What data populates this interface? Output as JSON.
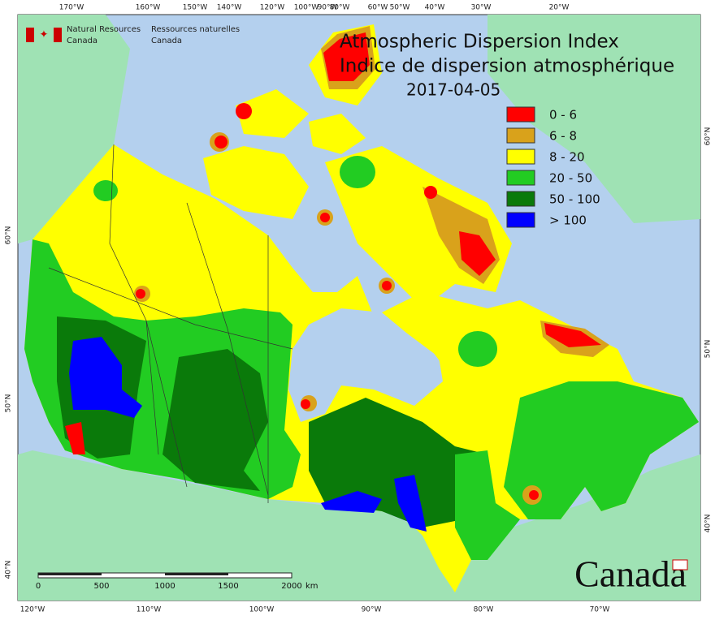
{
  "header": {
    "agency_en": [
      "Natural Resources",
      "Canada"
    ],
    "agency_fr": [
      "Ressources naturelles",
      "Canada"
    ]
  },
  "title": {
    "en": "Atmospheric Dispersion Index",
    "fr": "Indice de dispersion atmosphérique",
    "date": "2017-04-05"
  },
  "legend": [
    {
      "label": "0 - 6",
      "color": "#ff0000"
    },
    {
      "label": "6 - 8",
      "color": "#d9a21b"
    },
    {
      "label": "8 - 20",
      "color": "#ffff00"
    },
    {
      "label": "20 - 50",
      "color": "#22cc22"
    },
    {
      "label": "50 - 100",
      "color": "#0a7a0a"
    },
    {
      "label": "> 100",
      "color": "#0000ff"
    }
  ],
  "graticule": {
    "top": [
      "170°W",
      "160°W",
      "150°W",
      "140°W",
      "120°W",
      "100°W",
      "90°W",
      "80°W",
      "60°W",
      "50°W",
      "40°W",
      "30°W",
      "20°W"
    ],
    "bottom": [
      "120°W",
      "110°W",
      "100°W",
      "90°W",
      "80°W",
      "70°W"
    ],
    "left": [
      "60°N",
      "50°N",
      "40°N"
    ],
    "right": [
      "60°N",
      "50°N",
      "40°N"
    ]
  },
  "scale_bar": {
    "labels": [
      "0",
      "500",
      "1000",
      "1500",
      "2000"
    ],
    "unit": "km"
  },
  "wordmark": "Canada"
}
